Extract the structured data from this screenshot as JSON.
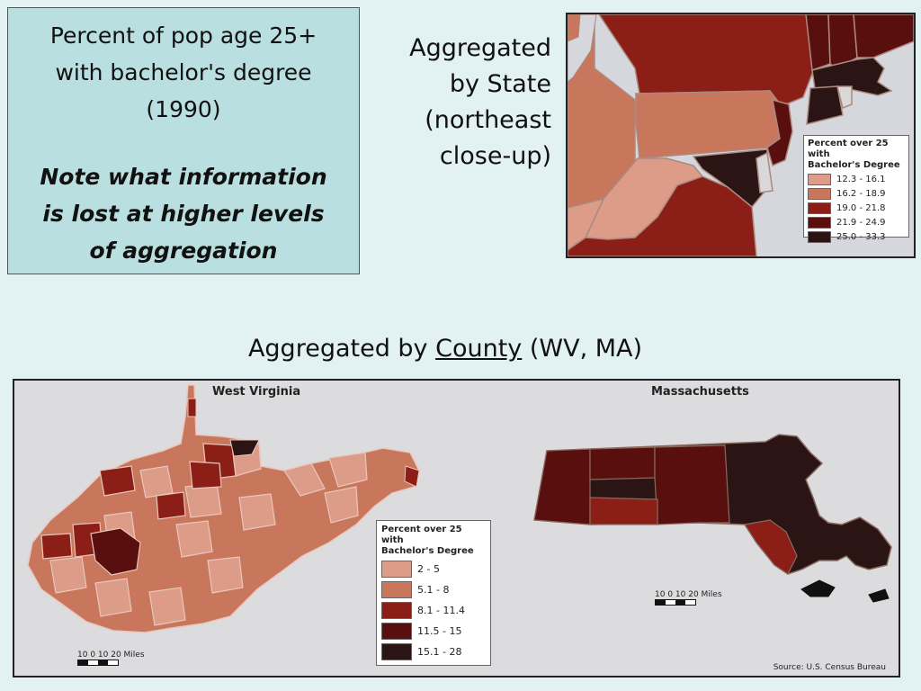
{
  "textbox": {
    "line1": "Percent of pop age 25+",
    "line2": "with bachelor's degree",
    "line3": "(1990)",
    "note1": "Note what information",
    "note2": "is lost at higher levels",
    "note3": "of aggregation"
  },
  "state_caption": {
    "line1": "Aggregated",
    "line2": "by State",
    "line3": "(northeast",
    "line4": "close-up)"
  },
  "county_caption": {
    "prefix": "Aggregated by ",
    "underlined": "County",
    "suffix": " (WV, MA)"
  },
  "state_map": {
    "legend_title_1": "Percent over 25 with",
    "legend_title_2": "Bachelor's Degree",
    "legend": [
      {
        "label": "12.3 - 16.1",
        "color": "#dc9c88"
      },
      {
        "label": "16.2 - 18.9",
        "color": "#c8765c"
      },
      {
        "label": "19.0 - 21.8",
        "color": "#8c1e18"
      },
      {
        "label": "21.9 - 24.9",
        "color": "#5a0f0f"
      },
      {
        "label": "25.0 - 33.3",
        "color": "#2a1414"
      }
    ]
  },
  "county_map": {
    "wv_title": "West Virginia",
    "ma_title": "Massachusetts",
    "legend_title_1": "Percent over 25 with",
    "legend_title_2": "Bachelor's Degree",
    "legend": [
      {
        "label": "2 - 5",
        "color": "#dc9c88"
      },
      {
        "label": "5.1 - 8",
        "color": "#c8765c"
      },
      {
        "label": "8.1 - 11.4",
        "color": "#8c1e18"
      },
      {
        "label": "11.5 - 15",
        "color": "#5a0f0f"
      },
      {
        "label": "15.1 - 28",
        "color": "#2a1414"
      }
    ],
    "scale_wv": "10  0  10 20  Miles",
    "scale_ma": "10  0  10 20  Miles",
    "source": "Source: U.S. Census Bureau"
  }
}
